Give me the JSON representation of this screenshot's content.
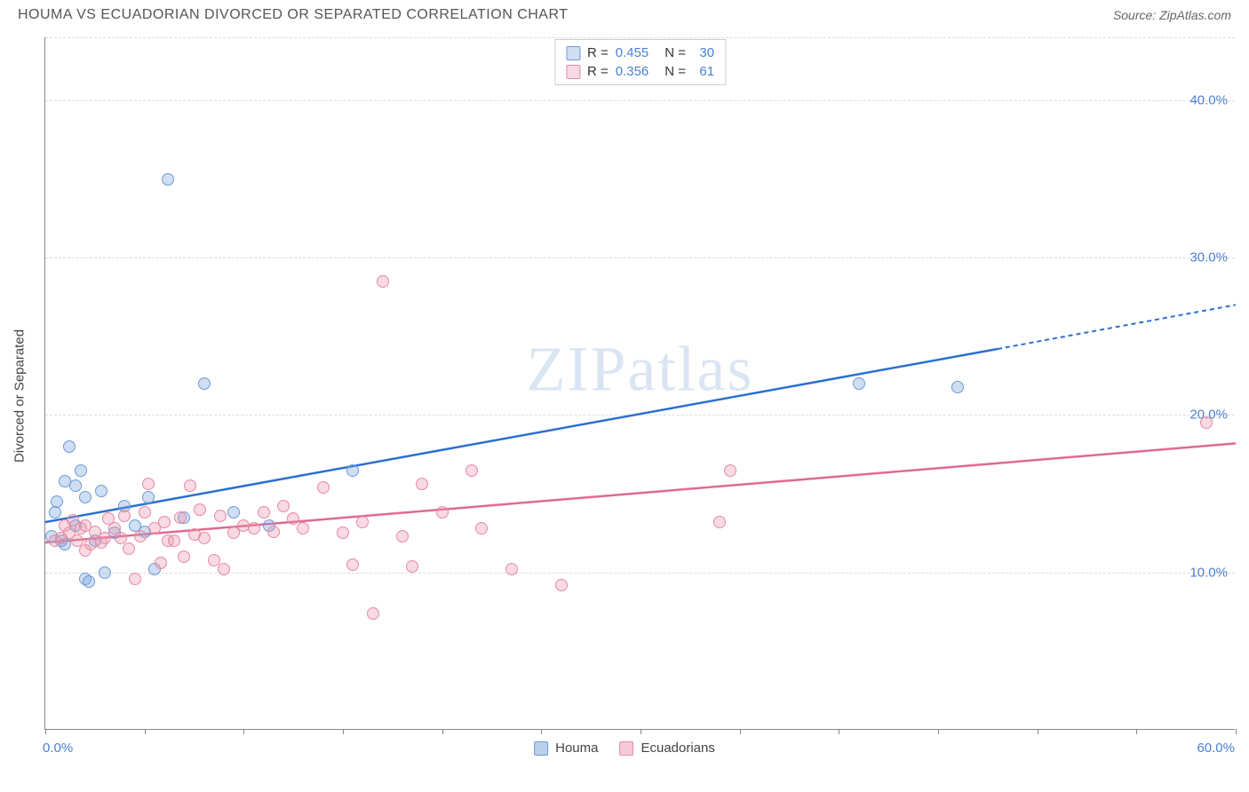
{
  "header": {
    "title": "HOUMA VS ECUADORIAN DIVORCED OR SEPARATED CORRELATION CHART",
    "source": "Source: ZipAtlas.com"
  },
  "watermark": "ZIPatlas",
  "chart": {
    "type": "scatter",
    "ylabel": "Divorced or Separated",
    "xlim": [
      0,
      60
    ],
    "ylim": [
      0,
      44
    ],
    "xtick_positions": [
      0,
      5,
      10,
      15,
      20,
      25,
      30,
      35,
      40,
      45,
      50,
      55,
      60
    ],
    "xtick_labels": {
      "0": "0.0%",
      "60": "60.0%"
    },
    "ytick_positions": [
      10,
      20,
      30,
      40
    ],
    "ytick_labels": {
      "10": "10.0%",
      "20": "20.0%",
      "30": "30.0%",
      "40": "40.0%"
    },
    "gridline_positions": [
      10,
      20,
      30,
      40,
      44
    ],
    "background_color": "#ffffff",
    "grid_color": "#dddddd",
    "marker_radius": 7,
    "marker_stroke_width": 1.2,
    "series": [
      {
        "name": "Houma",
        "fill_color": "rgba(120, 160, 220, 0.35)",
        "stroke_color": "#6b9bd6",
        "line_color": "#2c6fd2",
        "r_value": "0.455",
        "n_value": "30",
        "trend": {
          "x1": 0,
          "y1": 13.2,
          "x2": 48,
          "y2": 24.2,
          "x2_dash": 60,
          "y2_dash": 27.0
        },
        "points": [
          [
            0.3,
            12.3
          ],
          [
            0.5,
            13.8
          ],
          [
            0.6,
            14.5
          ],
          [
            0.8,
            12.0
          ],
          [
            1.0,
            15.8
          ],
          [
            1.0,
            11.8
          ],
          [
            1.2,
            18.0
          ],
          [
            1.5,
            13.0
          ],
          [
            1.5,
            15.5
          ],
          [
            1.8,
            16.5
          ],
          [
            2.0,
            14.8
          ],
          [
            2.0,
            9.6
          ],
          [
            2.2,
            9.4
          ],
          [
            2.5,
            12.0
          ],
          [
            2.8,
            15.2
          ],
          [
            3.0,
            10.0
          ],
          [
            3.5,
            12.5
          ],
          [
            4.0,
            14.2
          ],
          [
            4.5,
            13.0
          ],
          [
            5.0,
            12.6
          ],
          [
            5.2,
            14.8
          ],
          [
            5.5,
            10.2
          ],
          [
            6.2,
            35.0
          ],
          [
            7.0,
            13.5
          ],
          [
            8.0,
            22.0
          ],
          [
            9.5,
            13.8
          ],
          [
            15.5,
            16.5
          ],
          [
            41.0,
            22.0
          ],
          [
            46.0,
            21.8
          ],
          [
            11.3,
            13.0
          ]
        ]
      },
      {
        "name": "Ecuadorians",
        "fill_color": "rgba(235, 150, 175, 0.35)",
        "stroke_color": "#e589a3",
        "line_color": "#e06a8e",
        "r_value": "0.356",
        "n_value": "61",
        "trend": {
          "x1": 0,
          "y1": 11.9,
          "x2": 60,
          "y2": 18.2
        },
        "points": [
          [
            0.5,
            12.0
          ],
          [
            0.8,
            12.2
          ],
          [
            1.0,
            13.0
          ],
          [
            1.2,
            12.5
          ],
          [
            1.4,
            13.3
          ],
          [
            1.6,
            12.0
          ],
          [
            1.8,
            12.8
          ],
          [
            2.0,
            13.0
          ],
          [
            2.0,
            11.4
          ],
          [
            2.3,
            11.8
          ],
          [
            2.5,
            12.6
          ],
          [
            2.8,
            11.9
          ],
          [
            3.0,
            12.2
          ],
          [
            3.2,
            13.4
          ],
          [
            3.5,
            12.8
          ],
          [
            3.8,
            12.2
          ],
          [
            4.0,
            13.6
          ],
          [
            4.2,
            11.5
          ],
          [
            4.5,
            9.6
          ],
          [
            4.8,
            12.3
          ],
          [
            5.0,
            13.8
          ],
          [
            5.2,
            15.6
          ],
          [
            5.5,
            12.8
          ],
          [
            5.8,
            10.6
          ],
          [
            6.0,
            13.2
          ],
          [
            6.2,
            12.0
          ],
          [
            6.5,
            12.0
          ],
          [
            6.8,
            13.5
          ],
          [
            7.0,
            11.0
          ],
          [
            7.3,
            15.5
          ],
          [
            7.5,
            12.4
          ],
          [
            7.8,
            14.0
          ],
          [
            8.0,
            12.2
          ],
          [
            8.5,
            10.8
          ],
          [
            8.8,
            13.6
          ],
          [
            9.0,
            10.2
          ],
          [
            9.5,
            12.5
          ],
          [
            10.0,
            13.0
          ],
          [
            10.5,
            12.8
          ],
          [
            11.0,
            13.8
          ],
          [
            11.5,
            12.6
          ],
          [
            12.0,
            14.2
          ],
          [
            12.5,
            13.4
          ],
          [
            13.0,
            12.8
          ],
          [
            14.0,
            15.4
          ],
          [
            15.0,
            12.5
          ],
          [
            15.5,
            10.5
          ],
          [
            16.0,
            13.2
          ],
          [
            16.5,
            7.4
          ],
          [
            17.0,
            28.5
          ],
          [
            18.0,
            12.3
          ],
          [
            18.5,
            10.4
          ],
          [
            19.0,
            15.6
          ],
          [
            20.0,
            13.8
          ],
          [
            21.5,
            16.5
          ],
          [
            22.0,
            12.8
          ],
          [
            23.5,
            10.2
          ],
          [
            26.0,
            9.2
          ],
          [
            34.5,
            16.5
          ],
          [
            34.0,
            13.2
          ],
          [
            58.5,
            19.5
          ]
        ]
      }
    ]
  },
  "legend_bottom": [
    {
      "label": "Houma",
      "swatch_fill": "rgba(120,160,220,0.5)",
      "swatch_stroke": "#6b9bd6"
    },
    {
      "label": "Ecuadorians",
      "swatch_fill": "rgba(235,150,175,0.5)",
      "swatch_stroke": "#e589a3"
    }
  ]
}
